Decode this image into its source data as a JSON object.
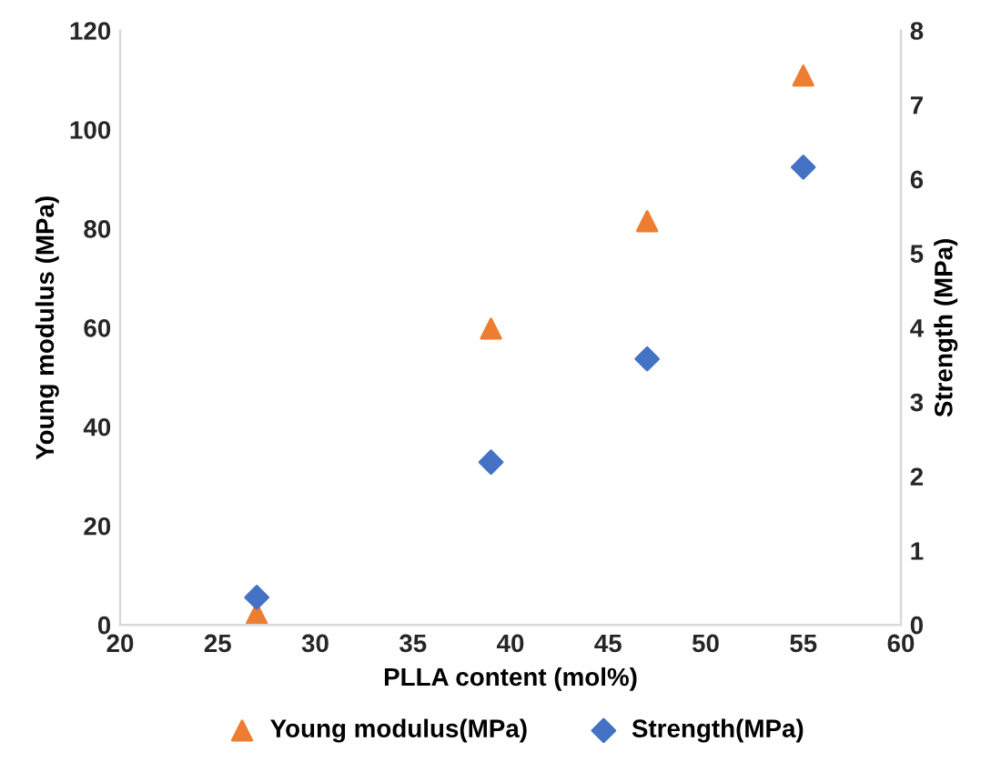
{
  "chart_data": {
    "type": "scatter",
    "xlabel": "PLLA content (mol%)",
    "ylabel": "Young modulus (MPa)",
    "y2label": "Strength (MPa)",
    "xlim": [
      20,
      60
    ],
    "xticks": [
      20,
      25,
      30,
      35,
      40,
      45,
      50,
      55,
      60
    ],
    "ylim": [
      0,
      120
    ],
    "yticks": [
      0,
      20,
      40,
      60,
      80,
      100,
      120
    ],
    "y2lim": [
      0,
      8
    ],
    "y2ticks": [
      0,
      1,
      2,
      3,
      4,
      5,
      6,
      7,
      8
    ],
    "grid": false,
    "legend": "bottom",
    "series": [
      {
        "name": "Young modulus(MPa)",
        "color": "#ed7d31",
        "marker": "triangle",
        "x": [
          27,
          39,
          47,
          55
        ],
        "values": [
          2.3,
          59.8,
          81.5,
          110.9
        ]
      },
      {
        "name": "Strength(MPa)",
        "color": "#4472c4",
        "marker": "diamond",
        "axis": "y2",
        "x": [
          27,
          39,
          47,
          55
        ],
        "values": [
          0.37,
          2.19,
          3.58,
          6.16
        ]
      }
    ]
  }
}
